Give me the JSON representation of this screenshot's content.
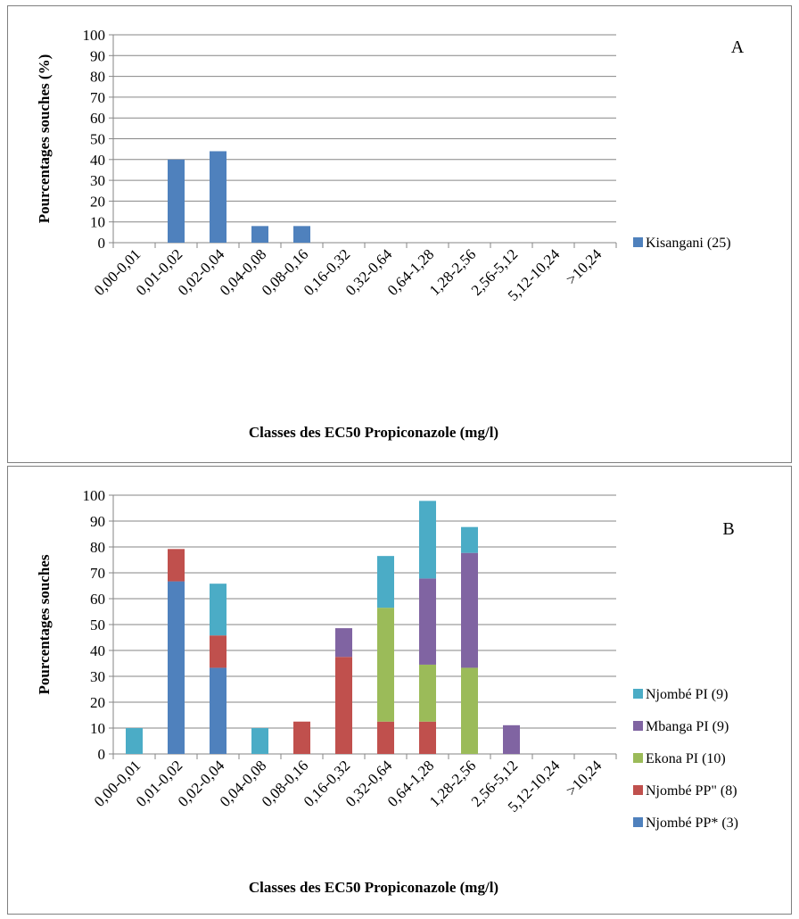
{
  "chart_data": [
    {
      "type": "bar",
      "panel_label": "A",
      "xlabel": "Classes des EC50 Propiconazole (mg/l)",
      "ylabel": "Pourcentages souches (%)",
      "ylim": [
        0,
        100
      ],
      "ytick_step": 10,
      "grid": true,
      "legend_position": "right",
      "categories": [
        "0,00-0,01",
        "0,01-0,02",
        "0,02-0,04",
        "0,04-0,08",
        "0,08-0,16",
        "0,16-0,32",
        "0,32-0,64",
        "0,64-1,28",
        "1,28-2,56",
        "2,56-5,12",
        "5,12-10,24",
        ">10,24"
      ],
      "series": [
        {
          "name": "Kisangani (25)",
          "color": "#4f81bd",
          "values": [
            0,
            40,
            44,
            8,
            8,
            0,
            0,
            0,
            0,
            0,
            0,
            0
          ]
        }
      ]
    },
    {
      "type": "bar",
      "stacked": true,
      "panel_label": "B",
      "xlabel": "Classes des EC50 Propiconazole (mg/l)",
      "ylabel": "Pourcentages souches",
      "ylim": [
        0,
        100
      ],
      "ytick_step": 10,
      "grid": true,
      "legend_position": "right",
      "categories": [
        "0,00-0,01",
        "0,01-0,02",
        "0,02-0,04",
        "0,04-0,08",
        "0,08-0,16",
        "0,16-0,32",
        "0,32-0,64",
        "0,64-1,28",
        "1,28-2,56",
        "2,56-5,12",
        "5,12-10,24",
        ">10,24"
      ],
      "series": [
        {
          "name": "Njombé PP* (3)",
          "color": "#4f81bd",
          "values": [
            0,
            66.7,
            33.3,
            0,
            0,
            0,
            0,
            0,
            0,
            0,
            0,
            0
          ]
        },
        {
          "name": "Njombé PP\" (8)",
          "color": "#c0504d",
          "values": [
            0,
            12.5,
            12.5,
            0,
            12.5,
            37.5,
            12.5,
            12.5,
            0,
            0,
            0,
            0
          ]
        },
        {
          "name": "Ekona PI (10)",
          "color": "#9bbb59",
          "values": [
            0,
            0,
            0,
            0,
            0,
            0,
            44,
            22,
            33.3,
            0,
            0,
            0
          ]
        },
        {
          "name": "Mbanga PI (9)",
          "color": "#8064a2",
          "values": [
            0,
            0,
            0,
            0,
            0,
            11.1,
            0,
            33.3,
            44.4,
            11.1,
            0,
            0
          ]
        },
        {
          "name": "Njombé PI (9)",
          "color": "#4bacc6",
          "values": [
            10,
            0,
            20,
            10,
            0,
            0,
            20,
            30,
            10,
            0,
            0,
            0
          ]
        }
      ]
    }
  ]
}
